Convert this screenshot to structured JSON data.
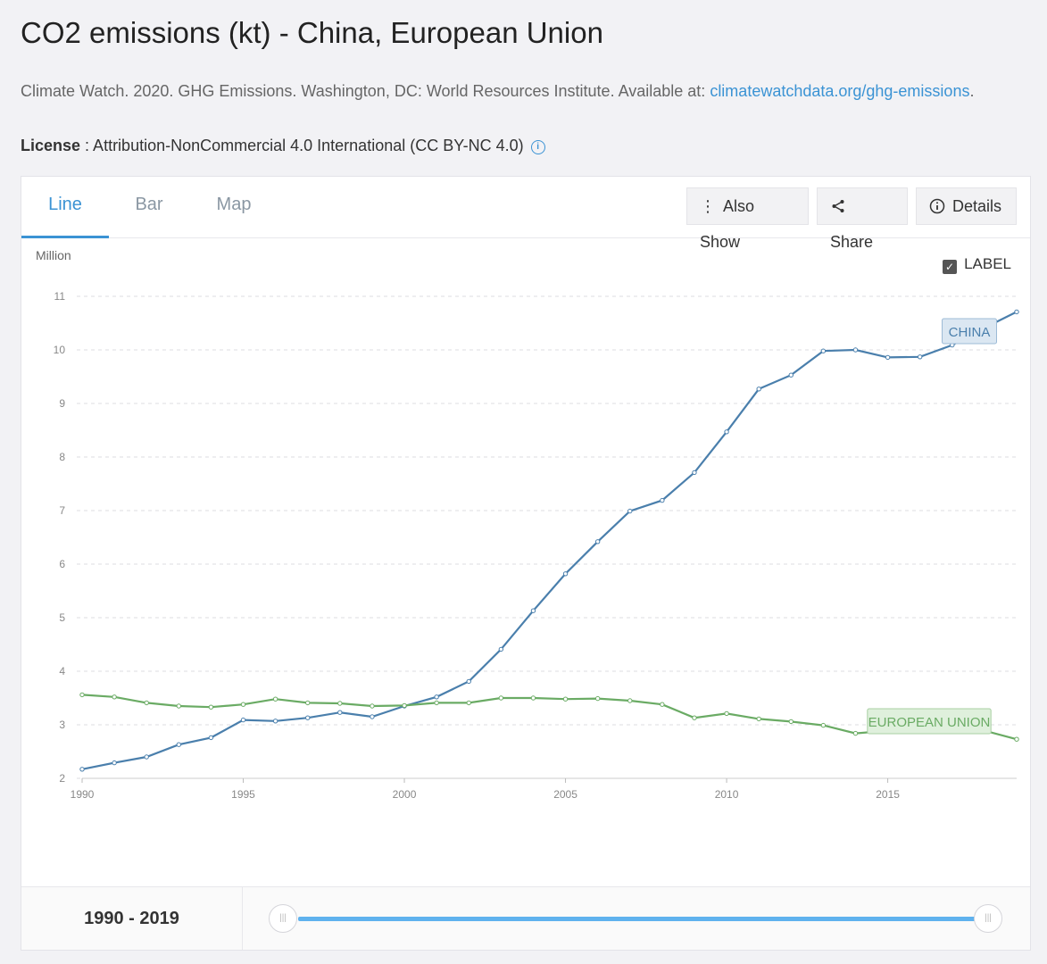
{
  "page": {
    "title": "CO2 emissions (kt) - China, European Union",
    "source_text": "Climate Watch. 2020. GHG Emissions. Washington, DC: World Resources Institute. Available at: ",
    "source_link": "climatewatchdata.org/ghg-emissions",
    "source_end": ".",
    "license_label": "License",
    "license_value": " : Attribution-NonCommercial 4.0 International (CC BY-NC 4.0)"
  },
  "tabs": [
    {
      "label": "Line",
      "active": true
    },
    {
      "label": "Bar",
      "active": false
    },
    {
      "label": "Map",
      "active": false
    }
  ],
  "toolbar": {
    "also_show": "Also Show",
    "share": "Share",
    "details": "Details"
  },
  "label_toggle": "LABEL",
  "range": {
    "label": "1990 - 2019"
  },
  "colors": {
    "china": "#4a7fac",
    "eu": "#6aab64",
    "accent": "#3b93d4"
  },
  "chart_data": {
    "type": "line",
    "ylabel": "Million",
    "ylim": [
      2,
      11
    ],
    "yticks": [
      2,
      3,
      4,
      5,
      6,
      7,
      8,
      9,
      10,
      11
    ],
    "xticks": [
      1990,
      1995,
      2000,
      2005,
      2010,
      2015
    ],
    "x": [
      1990,
      1991,
      1992,
      1993,
      1994,
      1995,
      1996,
      1997,
      1998,
      1999,
      2000,
      2001,
      2002,
      2003,
      2004,
      2005,
      2006,
      2007,
      2008,
      2009,
      2010,
      2011,
      2012,
      2013,
      2014,
      2015,
      2016,
      2017,
      2018,
      2019
    ],
    "series": [
      {
        "name": "CHINA",
        "values": [
          2.17,
          2.29,
          2.4,
          2.63,
          2.76,
          3.09,
          3.07,
          3.13,
          3.23,
          3.15,
          3.35,
          3.52,
          3.81,
          4.41,
          5.13,
          5.82,
          6.42,
          6.99,
          7.19,
          7.71,
          8.47,
          9.27,
          9.53,
          9.98,
          10.0,
          9.86,
          9.87,
          10.09,
          10.41,
          10.71
        ]
      },
      {
        "name": "EUROPEAN UNION",
        "values": [
          3.56,
          3.52,
          3.41,
          3.35,
          3.33,
          3.38,
          3.48,
          3.41,
          3.4,
          3.35,
          3.36,
          3.41,
          3.41,
          3.5,
          3.5,
          3.48,
          3.49,
          3.45,
          3.38,
          3.13,
          3.21,
          3.11,
          3.06,
          2.99,
          2.84,
          2.89,
          2.91,
          2.92,
          2.89,
          2.73
        ]
      }
    ]
  }
}
